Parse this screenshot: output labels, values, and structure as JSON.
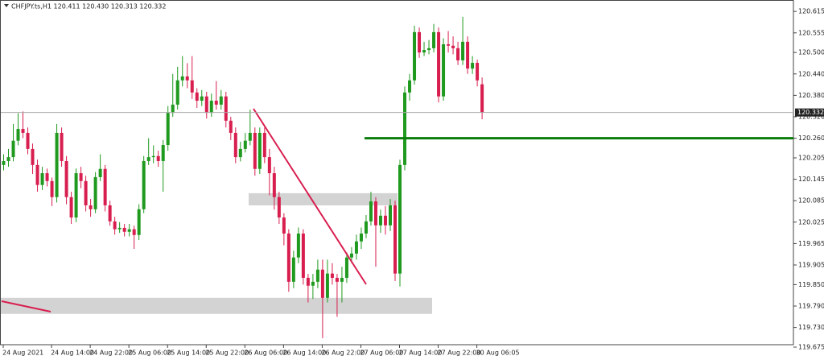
{
  "chart_data": {
    "type": "candlestick",
    "title": "CHFJPY.ts,H1  120.411 120.430 120.313 120.332",
    "up_color": "#1f9a1f",
    "down_color": "#d81e4f",
    "xlim": [
      -0.5,
      163.5
    ],
    "xticks": [
      {
        "value": 0,
        "label": "24 Aug 2021"
      },
      {
        "value": 10,
        "label": "24 Aug 14:00"
      },
      {
        "value": 18,
        "label": "24 Aug 22:00"
      },
      {
        "value": 26,
        "label": "25 Aug 06:00"
      },
      {
        "value": 34,
        "label": "25 Aug 14:00"
      },
      {
        "value": 42,
        "label": "25 Aug 22:00"
      },
      {
        "value": 50,
        "label": "26 Aug 06:00"
      },
      {
        "value": 58,
        "label": "26 Aug 14:00"
      },
      {
        "value": 66,
        "label": "26 Aug 22:00"
      },
      {
        "value": 74,
        "label": "27 Aug 06:00"
      },
      {
        "value": 82,
        "label": "27 Aug 14:00"
      },
      {
        "value": 90,
        "label": "27 Aug 22:00"
      },
      {
        "value": 98,
        "label": "30 Aug 06:05"
      }
    ],
    "ylim": [
      119.675,
      120.647
    ],
    "yticks": [
      120.615,
      120.555,
      {
        "value": 120.5,
        "label": "120.500"
      },
      {
        "value": 120.44,
        "label": "120.440"
      },
      {
        "value": 120.38,
        "label": "120.380"
      },
      {
        "value": 120.32,
        "label": "120.320"
      },
      {
        "value": 120.26,
        "label": "120.260"
      },
      120.205,
      120.145,
      120.085,
      120.025,
      119.965,
      119.905,
      {
        "value": 119.85,
        "label": "119.850"
      },
      {
        "value": 119.79,
        "label": "119.790"
      },
      {
        "value": 119.73,
        "label": "119.730"
      },
      119.675
    ],
    "last_price": 120.332,
    "level": 120.26,
    "zones": [
      [
        120.072,
        120.106
      ],
      [
        119.768,
        119.813
      ]
    ],
    "open": [
      120.185,
      120.196,
      120.207,
      120.253,
      120.286,
      120.275,
      120.23,
      120.185,
      120.129,
      120.162,
      120.14,
      120.095,
      120.275,
      120.196,
      120.095,
      120.038,
      120.162,
      120.14,
      120.072,
      120.061,
      120.151,
      120.174,
      120.072,
      120.027,
      120.005,
      120.009,
      119.998,
      120.005,
      119.989,
      120.061,
      120.196,
      120.207,
      120.21,
      120.196,
      120.241,
      120.331,
      120.354,
      120.422,
      120.433,
      120.422,
      120.388,
      120.365,
      120.377,
      120.331,
      120.365,
      120.354,
      120.377,
      120.309,
      120.275,
      120.207,
      120.23,
      120.253,
      120.275,
      120.174,
      120.275,
      120.207,
      120.162,
      120.095,
      120.038,
      119.993,
      119.858,
      119.926,
      119.993,
      119.869,
      119.847,
      119.858,
      119.892,
      119.813,
      119.881,
      119.869,
      119.858,
      119.869,
      119.926,
      119.937,
      119.971,
      119.993,
      120.027,
      120.083,
      120.016,
      120.043,
      120.016,
      120.072,
      119.881,
      120.185,
      120.388,
      120.422,
      120.557,
      120.5,
      120.507,
      120.512,
      120.557,
      120.377,
      120.523,
      120.519,
      120.512,
      120.478,
      120.53,
      120.455,
      120.471,
      120.411
    ],
    "high": [
      120.215,
      120.23,
      120.3,
      120.33,
      120.335,
      120.29,
      120.245,
      120.2,
      120.18,
      120.175,
      120.15,
      120.3,
      120.29,
      120.21,
      120.11,
      120.175,
      120.18,
      120.155,
      120.09,
      120.165,
      120.215,
      120.185,
      120.085,
      120.04,
      120.025,
      120.02,
      120.02,
      120.015,
      120.075,
      120.21,
      120.26,
      120.24,
      120.225,
      120.255,
      120.35,
      120.44,
      120.46,
      120.49,
      120.47,
      120.49,
      120.4,
      120.395,
      120.39,
      120.385,
      120.42,
      120.395,
      120.39,
      120.32,
      120.29,
      120.25,
      120.275,
      120.34,
      120.29,
      120.29,
      120.29,
      120.23,
      120.18,
      120.11,
      120.05,
      120.005,
      119.945,
      120.01,
      120.005,
      119.88,
      119.88,
      119.92,
      119.92,
      119.92,
      119.91,
      119.88,
      119.9,
      119.94,
      119.955,
      119.99,
      120.01,
      120.045,
      120.11,
      120.095,
      120.06,
      120.07,
      120.09,
      120.085,
      120.2,
      120.405,
      120.44,
      120.575,
      120.57,
      120.53,
      120.535,
      120.58,
      120.57,
      120.54,
      120.56,
      120.545,
      120.53,
      120.6,
      120.545,
      120.49,
      120.48,
      120.43
    ],
    "low": [
      120.17,
      120.18,
      120.195,
      120.24,
      120.26,
      120.215,
      120.16,
      120.11,
      120.115,
      120.125,
      120.07,
      120.08,
      120.18,
      120.075,
      120.02,
      120.025,
      120.12,
      120.055,
      120.04,
      120.05,
      120.14,
      120.055,
      120.015,
      119.99,
      119.995,
      119.985,
      119.985,
      119.95,
      119.975,
      120.05,
      120.185,
      120.19,
      120.18,
      120.11,
      120.225,
      120.32,
      120.34,
      120.405,
      120.4,
      120.37,
      120.345,
      120.35,
      120.315,
      120.32,
      120.34,
      120.34,
      120.29,
      120.255,
      120.19,
      120.195,
      120.22,
      120.24,
      120.155,
      120.16,
      120.19,
      120.1,
      120.06,
      120.02,
      119.96,
      119.83,
      119.84,
      119.91,
      119.85,
      119.8,
      119.81,
      119.84,
      119.7,
      119.8,
      119.85,
      119.76,
      119.8,
      119.855,
      119.91,
      119.92,
      119.95,
      119.98,
      120.015,
      119.9,
      119.995,
      119.99,
      120.0,
      119.86,
      119.845,
      120.17,
      120.365,
      120.41,
      120.485,
      120.49,
      120.495,
      120.5,
      120.36,
      120.365,
      120.5,
      120.495,
      120.465,
      120.465,
      120.44,
      120.44,
      120.405,
      120.313
    ],
    "close": [
      120.196,
      120.207,
      120.253,
      120.286,
      120.275,
      120.23,
      120.185,
      120.129,
      120.162,
      120.14,
      120.095,
      120.275,
      120.196,
      120.095,
      120.038,
      120.162,
      120.14,
      120.072,
      120.061,
      120.151,
      120.174,
      120.072,
      120.027,
      120.005,
      120.009,
      119.998,
      120.005,
      119.989,
      120.061,
      120.196,
      120.207,
      120.21,
      120.196,
      120.241,
      120.331,
      120.354,
      120.422,
      120.433,
      120.422,
      120.388,
      120.365,
      120.377,
      120.331,
      120.365,
      120.354,
      120.377,
      120.309,
      120.275,
      120.207,
      120.23,
      120.253,
      120.275,
      120.174,
      120.275,
      120.207,
      120.162,
      120.095,
      120.038,
      119.993,
      119.858,
      119.926,
      119.993,
      119.869,
      119.847,
      119.858,
      119.892,
      119.813,
      119.881,
      119.869,
      119.858,
      119.869,
      119.926,
      119.937,
      119.971,
      119.993,
      120.027,
      120.083,
      120.016,
      120.043,
      120.016,
      120.072,
      119.881,
      120.185,
      120.388,
      120.422,
      120.557,
      120.5,
      120.507,
      120.512,
      120.557,
      120.377,
      120.523,
      120.519,
      120.512,
      120.478,
      120.53,
      120.455,
      120.471,
      120.422,
      120.332
    ]
  }
}
